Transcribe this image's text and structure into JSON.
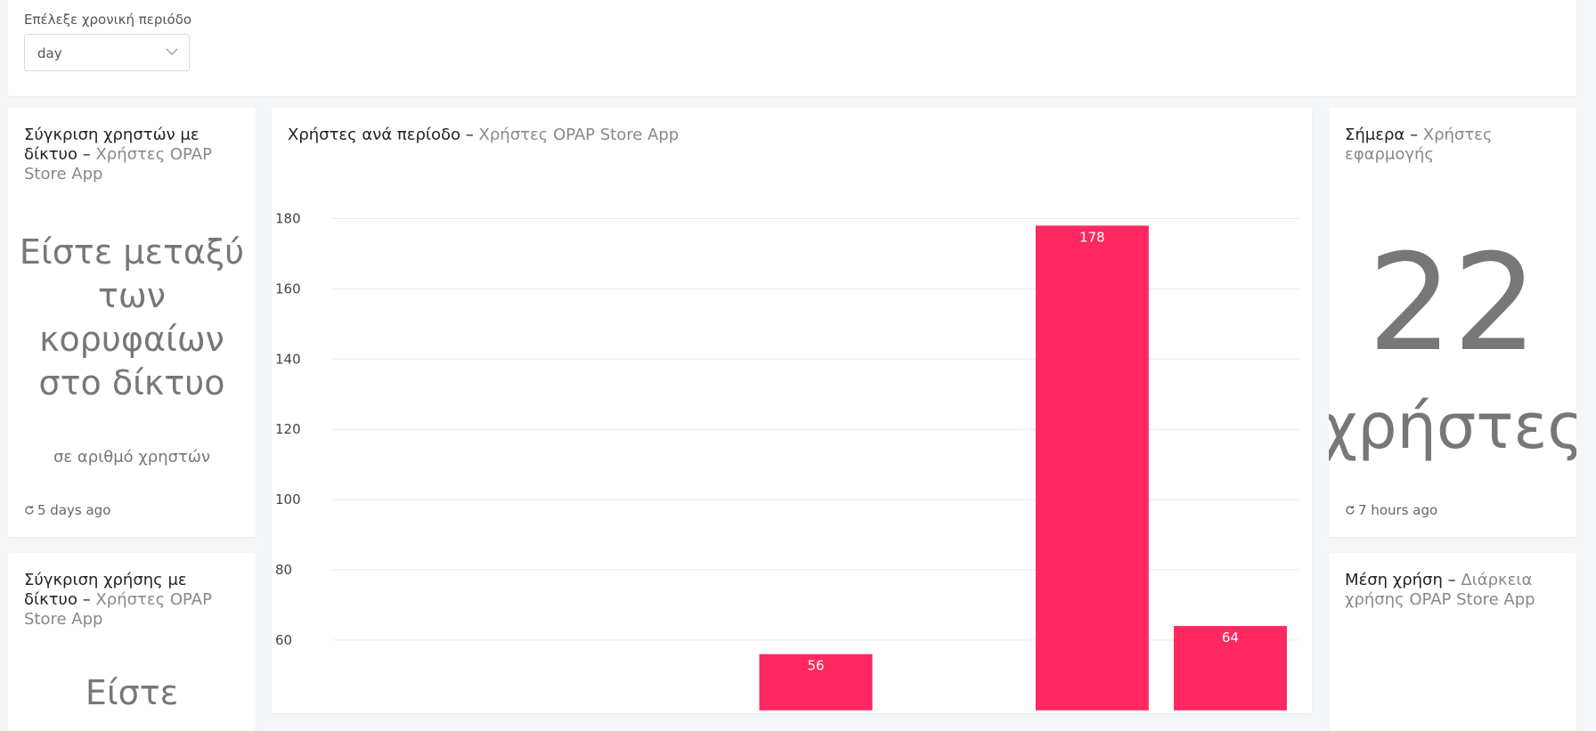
{
  "period": {
    "label": "Επέλεξε χρονική περιόδο",
    "selected": "day"
  },
  "compare_users": {
    "title": "Σύγκριση χρηστών με δίκτυο",
    "subtitle": "Χρήστες OPAP Store App",
    "rank_text": "Είστε μεταξύ των κορυφαίων στο δίκτυο",
    "rank_sub": "σε αριθμό χρηστών",
    "updated": "5 days ago"
  },
  "users_per_period": {
    "title": "Χρήστες ανά περίοδο",
    "subtitle": "Χρήστες OPAP Store App"
  },
  "today": {
    "title": "Σήμερα",
    "subtitle": "Χρήστες εφαρμογής",
    "value": "22",
    "unit": "χρήστες",
    "updated": "7 hours ago"
  },
  "compare_usage": {
    "title": "Σύγκριση χρήσης με δίκτυο",
    "subtitle": "Χρήστες OPAP Store App",
    "rank_peek": "Είστε"
  },
  "avg_usage": {
    "title": "Μέση χρήση",
    "subtitle": "Διάρκεια χρήσης OPAP Store App"
  },
  "colors": {
    "bar": "#ff2861",
    "accent_text": "#888888"
  },
  "chart_data": {
    "type": "bar",
    "ylim": [
      40,
      190
    ],
    "yticks": [
      "60",
      "80",
      "100",
      "120",
      "140",
      "160",
      "180"
    ],
    "slots": 7,
    "bars": [
      {
        "slot": 3,
        "value": 56,
        "label": "56"
      },
      {
        "slot": 5,
        "value": 178,
        "label": "178"
      },
      {
        "slot": 6,
        "value": 64,
        "label": "64"
      }
    ]
  }
}
